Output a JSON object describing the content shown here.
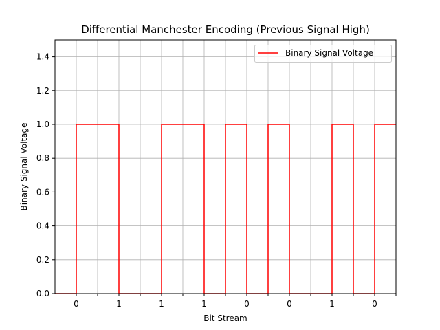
{
  "chart_data": {
    "type": "line",
    "title": "Differential Manchester Encoding (Previous Signal High)",
    "xlabel": "Bit Stream",
    "ylabel": "Binary Signal Voltage",
    "xlim": [
      -1,
      15
    ],
    "ylim": [
      0,
      1.5
    ],
    "yticks": [
      0.0,
      0.2,
      0.4,
      0.6,
      0.8,
      1.0,
      1.2,
      1.4
    ],
    "ytick_labels": [
      "0.0",
      "0.2",
      "0.4",
      "0.6",
      "0.8",
      "1.0",
      "1.2",
      "1.4"
    ],
    "xticks": [
      0,
      1,
      2,
      3,
      4,
      5,
      6,
      7,
      8,
      9,
      10,
      11,
      12,
      13,
      14,
      15
    ],
    "xtick_labels": [
      "0",
      "",
      "1",
      "",
      "1",
      "",
      "1",
      "",
      "0",
      "",
      "0",
      "",
      "1",
      "",
      "0",
      ""
    ],
    "grid": true,
    "legend_position": "top-right",
    "series": [
      {
        "name": "Binary Signal Voltage",
        "color": "#ff0000",
        "step": "post",
        "x": [
          -1,
          0,
          1,
          2,
          3,
          4,
          5,
          6,
          7,
          8,
          9,
          10,
          11,
          12,
          13,
          14,
          15
        ],
        "y": [
          0,
          1,
          1,
          0,
          0,
          1,
          1,
          0,
          1,
          0,
          1,
          0,
          0,
          1,
          0,
          1,
          1
        ]
      }
    ]
  }
}
